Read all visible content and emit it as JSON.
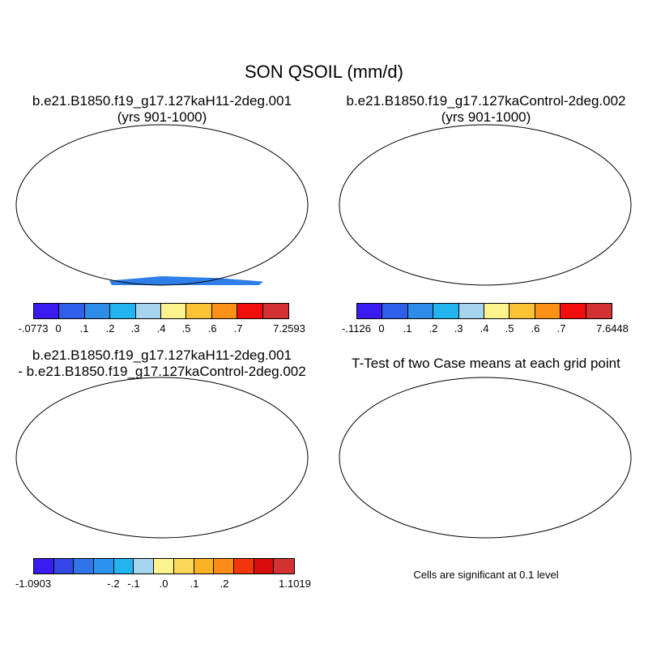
{
  "main_title": "SON QSOIL (mm/d)",
  "panels": [
    {
      "title_line1": "b.e21.B1850.f19_g17.127kaH11-2deg.001",
      "title_line2": "(yrs 901-1000)",
      "colorbar": {
        "colors": [
          "#3a1cf0",
          "#2f5ee8",
          "#2c8ce8",
          "#22b4ee",
          "#a6d4ee",
          "#fdf38e",
          "#fbc236",
          "#fb9117",
          "#f40d0d",
          "#d23232"
        ],
        "tick_labels": [
          "-.0773",
          "0",
          ".1",
          ".2",
          ".3",
          ".4",
          ".5",
          ".6",
          ".7",
          "7.2593"
        ]
      }
    },
    {
      "title_line1": "b.e21.B1850.f19_g17.127kaControl-2deg.002",
      "title_line2": "(yrs 901-1000)",
      "colorbar": {
        "colors": [
          "#3a1cf0",
          "#2f5ee8",
          "#2c8ce8",
          "#22b4ee",
          "#a6d4ee",
          "#fdf38e",
          "#fbc236",
          "#fb9117",
          "#f40d0d",
          "#d23232"
        ],
        "tick_labels": [
          "-.1126",
          "0",
          "",
          ".1",
          ".2",
          ".3",
          ".4",
          ".5",
          ".6",
          ".7",
          "7.6448"
        ]
      }
    },
    {
      "title_line1": "b.e21.B1850.f19_g17.127kaH11-2deg.001",
      "title_line2": "- b.e21.B1850.f19_g17.127kaControl-2deg.002",
      "colorbar": {
        "colors": [
          "#3a1cf0",
          "#3448e6",
          "#2f74e8",
          "#2c94ec",
          "#22b4ee",
          "#a6d4ee",
          "#fdf38e",
          "#fbd75a",
          "#fbb326",
          "#fb8b16",
          "#f2360d",
          "#d80c0c",
          "#d23232"
        ],
        "tick_labels": [
          "-1.0903",
          "",
          "",
          "-.2",
          "-.1",
          ".0",
          ".1",
          ".2",
          "",
          "",
          "",
          "1.1019"
        ]
      }
    },
    {
      "title_line1": "T-Test of two Case means at each grid point",
      "note": "Cells are significant at 0.1 level"
    }
  ]
}
